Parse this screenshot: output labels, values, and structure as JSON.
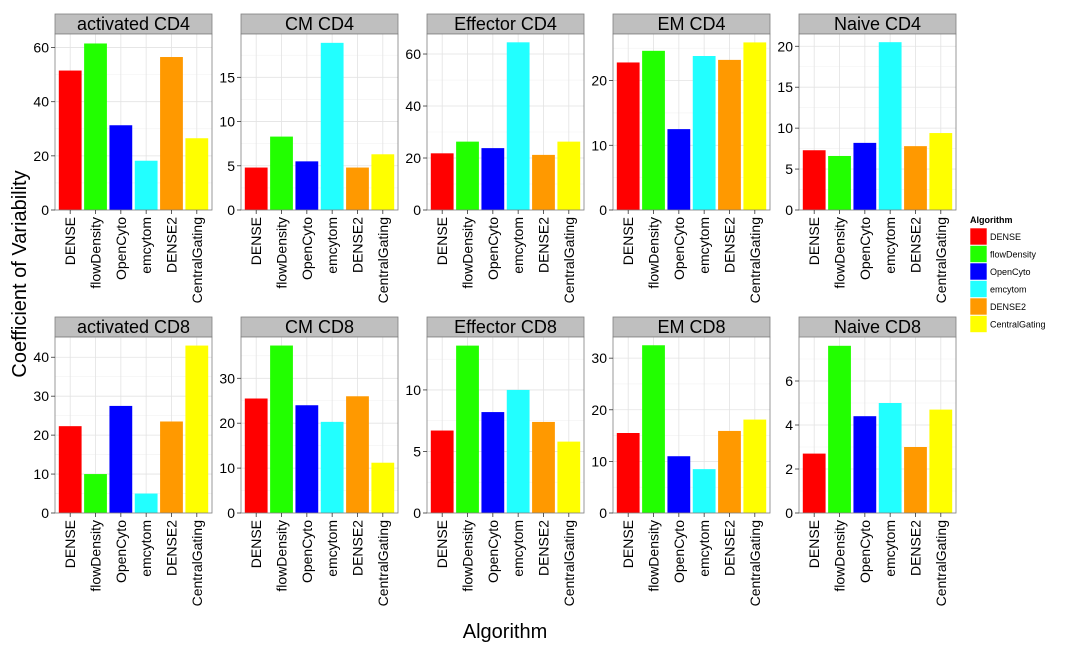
{
  "chart_data": {
    "type": "bar",
    "xlabel": "Algorithm",
    "ylabel": "Coefficient of Variability",
    "categories": [
      "DENSE",
      "flowDensity",
      "OpenCyto",
      "emcytom",
      "DENSE2",
      "CentralGating"
    ],
    "legend": {
      "title": "Algorithm",
      "placement": "right",
      "items": [
        "DENSE",
        "flowDensity",
        "OpenCyto",
        "emcytom",
        "DENSE2",
        "CentralGating"
      ]
    },
    "colors": [
      "#ff0000",
      "#22ff00",
      "#0000ff",
      "#22ffff",
      "#ff9900",
      "#ffff00"
    ],
    "grid": true,
    "panels": [
      {
        "title": "activated CD4",
        "values": [
          51.5,
          61.5,
          31.3,
          18.2,
          56.5,
          26.5
        ],
        "ylim": [
          0,
          65
        ],
        "ticks": [
          0,
          20,
          40,
          60
        ]
      },
      {
        "title": "CM CD4",
        "values": [
          4.8,
          8.3,
          5.5,
          18.9,
          4.8,
          6.3
        ],
        "ylim": [
          0,
          19.9
        ],
        "ticks": [
          0,
          5,
          10,
          15
        ]
      },
      {
        "title": "Effector CD4",
        "values": [
          21.8,
          26.3,
          23.8,
          64.5,
          21.2,
          26.3
        ],
        "ylim": [
          0,
          67.7
        ],
        "ticks": [
          0,
          20,
          40,
          60
        ]
      },
      {
        "title": "EM CD4",
        "values": [
          22.8,
          24.6,
          12.5,
          23.8,
          23.2,
          25.9
        ],
        "ylim": [
          0,
          27.2
        ],
        "ticks": [
          0,
          10,
          20
        ]
      },
      {
        "title": "Naive CD4",
        "values": [
          7.3,
          6.6,
          8.2,
          20.5,
          7.8,
          9.4
        ],
        "ylim": [
          0,
          21.5
        ],
        "ticks": [
          0,
          5,
          10,
          15,
          20
        ]
      },
      {
        "title": "activated CD8",
        "values": [
          22.3,
          10.0,
          27.5,
          5.0,
          23.5,
          43.0
        ],
        "ylim": [
          0,
          45.2
        ],
        "ticks": [
          0,
          10,
          20,
          30,
          40
        ]
      },
      {
        "title": "CM CD8",
        "values": [
          25.5,
          37.3,
          24.0,
          20.3,
          26.0,
          11.2
        ],
        "ylim": [
          0,
          39.2
        ],
        "ticks": [
          0,
          10,
          20,
          30
        ]
      },
      {
        "title": "Effector CD8",
        "values": [
          6.7,
          13.6,
          8.2,
          10.0,
          7.4,
          5.8
        ],
        "ylim": [
          0,
          14.3
        ],
        "ticks": [
          0,
          5,
          10
        ]
      },
      {
        "title": "EM CD8",
        "values": [
          15.5,
          32.5,
          11.0,
          8.5,
          15.9,
          18.1
        ],
        "ylim": [
          0,
          34.1
        ],
        "ticks": [
          0,
          10,
          20,
          30
        ]
      },
      {
        "title": "Naive CD8",
        "values": [
          2.7,
          7.6,
          4.4,
          5.0,
          3.0,
          4.7
        ],
        "ylim": [
          0,
          8.0
        ],
        "ticks": [
          0,
          2,
          4,
          6
        ]
      }
    ]
  }
}
